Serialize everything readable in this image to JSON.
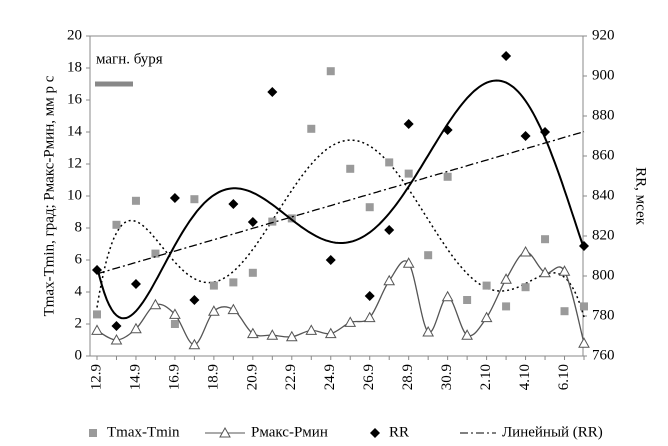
{
  "chart_data": {
    "type": "line",
    "categories": [
      "12.9",
      null,
      "14.9",
      null,
      "16.9",
      null,
      "18.9",
      null,
      "20.9",
      null,
      "22.9",
      null,
      "24.9",
      null,
      "26.9",
      null,
      "28.9",
      null,
      "30.9",
      null,
      "2.10",
      null,
      "4.10",
      null,
      "6.10",
      null
    ],
    "series": [
      {
        "name": "Tmax-Tmin",
        "type": "scatter",
        "marker": "square",
        "color": "#9a9a9a",
        "trend": "poly",
        "values": [
          2.6,
          8.2,
          9.7,
          6.4,
          2.0,
          9.8,
          4.4,
          4.6,
          5.2,
          8.4,
          8.6,
          14.2,
          17.8,
          11.7,
          9.3,
          12.1,
          11.4,
          6.3,
          11.2,
          3.5,
          4.4,
          3.1,
          4.3,
          7.3,
          2.8,
          3.1
        ]
      },
      {
        "name": "Pмакс-Pмин",
        "type": "line",
        "marker": "triangle",
        "color": "#555555",
        "values": [
          1.6,
          1.0,
          1.7,
          3.2,
          2.6,
          0.7,
          2.8,
          2.9,
          1.4,
          1.3,
          1.2,
          1.6,
          1.4,
          2.1,
          2.4,
          4.7,
          5.8,
          1.5,
          3.7,
          1.3,
          2.4,
          4.8,
          6.5,
          5.2,
          5.3,
          0.8
        ]
      },
      {
        "name": "RR",
        "type": "scatter",
        "marker": "diamond",
        "color": "#000000",
        "axis": "y2",
        "trend": "poly",
        "values": [
          803,
          775,
          796,
          null,
          839,
          788,
          null,
          836,
          827,
          892,
          null,
          null,
          808,
          null,
          790,
          823,
          876,
          null,
          873,
          null,
          null,
          910,
          870,
          872,
          null,
          815
        ]
      }
    ],
    "trendline": {
      "name": "Линейный (RR)",
      "of": 2
    },
    "annotation": "магн. буря",
    "y_label": "Tmax-Tmin, град; Pмакс-Pмин, мм р с",
    "y2_label": "RR, мсек",
    "ylim": [
      0,
      20
    ],
    "yticks": [
      0,
      2,
      4,
      6,
      8,
      10,
      12,
      14,
      16,
      18,
      20
    ],
    "y2lim": [
      760,
      920
    ],
    "y2ticks": [
      760,
      780,
      800,
      820,
      840,
      860,
      880,
      900,
      920
    ],
    "grid": false,
    "legend": "bottom"
  }
}
